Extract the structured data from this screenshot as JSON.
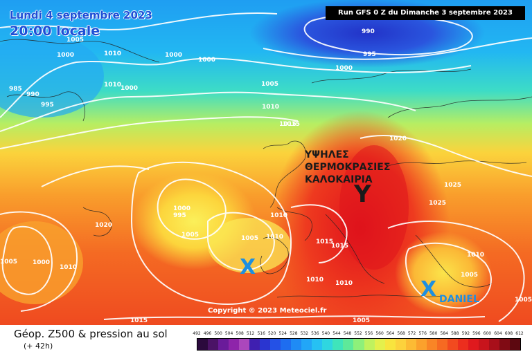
{
  "header": {
    "date_title": "Lundi 4 septembre 2023",
    "local_time": "20:00 locale",
    "run_info": "Run GFS 0 Z du Dimanche 3 septembre 2023"
  },
  "overlay": {
    "greek_line1": "ΥΨΗΛΕΣ",
    "greek_line2": "ΘΕΡΜΟΚΡΑΣΙΕΣ",
    "greek_line3": "ΚΑΛΟΚΑΙΡΙΑ",
    "high_marker": "Y",
    "low_marker_west": "X",
    "low_marker_east": "X",
    "storm_name": "DANIEL",
    "copyright": "Copyright © 2023 Meteociel.fr"
  },
  "footer": {
    "product_title": "Géop. Z500 & pression au sol",
    "forecast_hour": "(+ 42h)"
  },
  "isobar_labels": [
    "1005",
    "1010",
    "1000",
    "990",
    "995",
    "1000",
    "1005",
    "1010",
    "1015",
    "985",
    "990",
    "995",
    "1000",
    "1000",
    "1000",
    "1010",
    "1015",
    "1020",
    "1025",
    "1025",
    "1000",
    "995",
    "1005",
    "1005",
    "1010",
    "1010",
    "1015",
    "1015",
    "1020",
    "1005",
    "1000",
    "1010",
    "1010",
    "1010",
    "1015",
    "1005",
    "1010",
    "1005",
    "1005"
  ],
  "legend": {
    "values": [
      "492",
      "496",
      "500",
      "504",
      "508",
      "512",
      "516",
      "520",
      "524",
      "528",
      "532",
      "536",
      "540",
      "544",
      "548",
      "552",
      "556",
      "560",
      "564",
      "568",
      "572",
      "576",
      "580",
      "584",
      "588",
      "592",
      "596",
      "600",
      "604",
      "608",
      "612"
    ],
    "colors": [
      "#2b0a3d",
      "#4b1366",
      "#6a1b9a",
      "#8e24aa",
      "#ab47bc",
      "#3f1fb0",
      "#2a35d0",
      "#2451e6",
      "#1e6df0",
      "#1f8bf5",
      "#22a6f7",
      "#26c1f3",
      "#2fd6e0",
      "#3fe4bb",
      "#5ee99a",
      "#8ef07a",
      "#c0f25e",
      "#e4f04c",
      "#f8e43e",
      "#fcd23c",
      "#fcbb34",
      "#fba12c",
      "#f98526",
      "#f66a22",
      "#f24a1f",
      "#ec2e1e",
      "#e0191e",
      "#c8141c",
      "#a80f1a",
      "#800b14",
      "#5c0810"
    ]
  }
}
